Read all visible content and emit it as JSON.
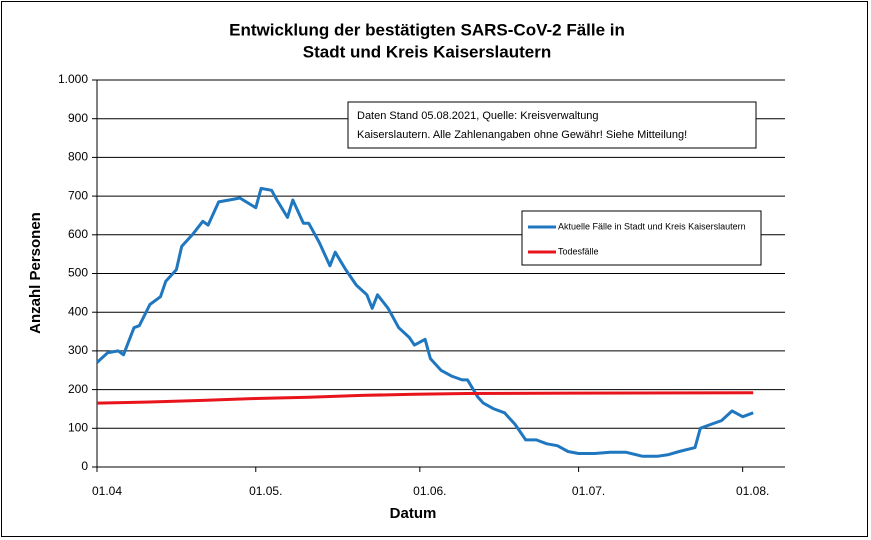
{
  "chart_data": {
    "type": "line",
    "title": [
      "Entwicklung der bestätigten SARS-CoV-2 Fälle in",
      "Stadt und Kreis Kaiserslautern"
    ],
    "xlabel": "Datum",
    "ylabel": "Anzahl Personen",
    "annotation": [
      "Daten Stand 05.08.2021, Quelle: Kreisverwaltung",
      "Kaiserslautern. Alle Zahlenangaben ohne Gewähr! Siehe Mitteilung!"
    ],
    "xlim": [
      0,
      130
    ],
    "xticks": [
      {
        "value": 0,
        "label": "01.04"
      },
      {
        "value": 30,
        "label": "01.05."
      },
      {
        "value": 61,
        "label": "01.06."
      },
      {
        "value": 91,
        "label": "01.07."
      },
      {
        "value": 122,
        "label": "01.08."
      }
    ],
    "ylim": [
      0,
      1000
    ],
    "yticks": [
      0,
      100,
      200,
      300,
      400,
      500,
      600,
      700,
      800,
      900,
      {
        "value": 1000,
        "label": "1.000"
      }
    ],
    "grid": true,
    "series": [
      {
        "name": "Aktuelle Fälle in Stadt und Kreis Kaiserslautern",
        "color": "#1f77c0",
        "x": [
          0,
          2,
          4,
          5,
          7,
          8,
          10,
          12,
          13,
          15,
          16,
          18,
          20,
          21,
          23,
          25,
          27,
          30,
          31,
          33,
          34,
          36,
          37,
          39,
          40,
          42,
          44,
          45,
          47,
          49,
          51,
          52,
          53,
          55,
          57,
          59,
          60,
          62,
          63,
          65,
          67,
          69,
          70,
          72,
          73,
          75,
          77,
          79,
          81,
          83,
          85,
          87,
          89,
          91,
          94,
          97,
          100,
          103,
          106,
          108,
          110,
          113,
          114,
          116,
          118,
          120,
          122,
          124
        ],
        "values": [
          270,
          295,
          300,
          290,
          360,
          365,
          420,
          440,
          480,
          510,
          570,
          600,
          635,
          625,
          685,
          690,
          695,
          670,
          720,
          715,
          690,
          645,
          690,
          630,
          630,
          580,
          520,
          555,
          510,
          470,
          445,
          410,
          445,
          410,
          360,
          335,
          315,
          330,
          280,
          250,
          235,
          225,
          225,
          180,
          165,
          150,
          140,
          110,
          70,
          70,
          60,
          55,
          40,
          35,
          35,
          38,
          38,
          28,
          28,
          32,
          40,
          50,
          100,
          110,
          120,
          145,
          130,
          140
        ]
      },
      {
        "name": "Todesfälle",
        "color": "#e8141c",
        "x": [
          0,
          10,
          20,
          30,
          40,
          50,
          60,
          70,
          90,
          124
        ],
        "values": [
          165,
          168,
          172,
          177,
          180,
          185,
          188,
          190,
          191,
          192
        ]
      }
    ]
  }
}
